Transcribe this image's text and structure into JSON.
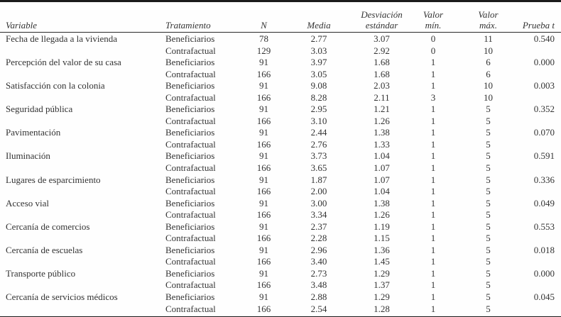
{
  "table": {
    "header": {
      "columns": [
        {
          "id": "variable",
          "line1": "",
          "line2": "Variable"
        },
        {
          "id": "tratamiento",
          "line1": "",
          "line2": "Tratamiento"
        },
        {
          "id": "n",
          "line1": "",
          "line2": "N"
        },
        {
          "id": "media",
          "line1": "",
          "line2": "Media"
        },
        {
          "id": "sd",
          "line1": "Desviación",
          "line2": "estándar"
        },
        {
          "id": "min",
          "line1": "Valor",
          "line2": "mín."
        },
        {
          "id": "max",
          "line1": "Valor",
          "line2": "máx."
        },
        {
          "id": "t",
          "line1": "",
          "line2": "Prueba t"
        }
      ]
    },
    "rows": [
      {
        "variable": "Fecha de llegada a la vivienda",
        "tratamiento": "Beneficiarios",
        "n": "78",
        "media": "2.77",
        "sd": "3.07",
        "min": "0",
        "max": "11",
        "t": "0.540"
      },
      {
        "variable": "",
        "tratamiento": "Contrafactual",
        "n": "129",
        "media": "3.03",
        "sd": "2.92",
        "min": "0",
        "max": "10",
        "t": ""
      },
      {
        "variable": "Percepción del valor de su casa",
        "tratamiento": "Beneficiarios",
        "n": "91",
        "media": "3.97",
        "sd": "1.68",
        "min": "1",
        "max": "6",
        "t": "0.000"
      },
      {
        "variable": "",
        "tratamiento": "Contrafactual",
        "n": "166",
        "media": "3.05",
        "sd": "1.68",
        "min": "1",
        "max": "6",
        "t": ""
      },
      {
        "variable": "Satisfacción con la colonia",
        "tratamiento": "Beneficiarios",
        "n": "91",
        "media": "9.08",
        "sd": "2.03",
        "min": "1",
        "max": "10",
        "t": "0.003"
      },
      {
        "variable": "",
        "tratamiento": "Contrafactual",
        "n": "166",
        "media": "8.28",
        "sd": "2.11",
        "min": "3",
        "max": "10",
        "t": ""
      },
      {
        "variable": "Seguridad pública",
        "tratamiento": "Beneficiarios",
        "n": "91",
        "media": "2.95",
        "sd": "1.21",
        "min": "1",
        "max": "5",
        "t": "0.352"
      },
      {
        "variable": "",
        "tratamiento": "Contrafactual",
        "n": "166",
        "media": "3.10",
        "sd": "1.26",
        "min": "1",
        "max": "5",
        "t": ""
      },
      {
        "variable": "Pavimentación",
        "tratamiento": "Beneficiarios",
        "n": "91",
        "media": "2.44",
        "sd": "1.38",
        "min": "1",
        "max": "5",
        "t": "0.070"
      },
      {
        "variable": "",
        "tratamiento": "Contrafactual",
        "n": "166",
        "media": "2.76",
        "sd": "1.33",
        "min": "1",
        "max": "5",
        "t": ""
      },
      {
        "variable": "Iluminación",
        "tratamiento": "Beneficiarios",
        "n": "91",
        "media": "3.73",
        "sd": "1.04",
        "min": "1",
        "max": "5",
        "t": "0.591"
      },
      {
        "variable": "",
        "tratamiento": "Contrafactual",
        "n": "166",
        "media": "3.65",
        "sd": "1.07",
        "min": "1",
        "max": "5",
        "t": ""
      },
      {
        "variable": "Lugares de esparcimiento",
        "tratamiento": "Beneficiarios",
        "n": "91",
        "media": "1.87",
        "sd": "1.07",
        "min": "1",
        "max": "5",
        "t": "0.336"
      },
      {
        "variable": "",
        "tratamiento": "Contrafactual",
        "n": "166",
        "media": "2.00",
        "sd": "1.04",
        "min": "1",
        "max": "5",
        "t": ""
      },
      {
        "variable": "Acceso vial",
        "tratamiento": "Beneficiarios",
        "n": "91",
        "media": "3.00",
        "sd": "1.38",
        "min": "1",
        "max": "5",
        "t": "0.049"
      },
      {
        "variable": "",
        "tratamiento": "Contrafactual",
        "n": "166",
        "media": "3.34",
        "sd": "1.26",
        "min": "1",
        "max": "5",
        "t": ""
      },
      {
        "variable": "Cercanía de comercios",
        "tratamiento": "Beneficiarios",
        "n": "91",
        "media": "2.37",
        "sd": "1.19",
        "min": "1",
        "max": "5",
        "t": "0.553"
      },
      {
        "variable": "",
        "tratamiento": "Contrafactual",
        "n": "166",
        "media": "2.28",
        "sd": "1.15",
        "min": "1",
        "max": "5",
        "t": ""
      },
      {
        "variable": "Cercanía de escuelas",
        "tratamiento": "Beneficiarios",
        "n": "91",
        "media": "2.96",
        "sd": "1.36",
        "min": "1",
        "max": "5",
        "t": "0.018"
      },
      {
        "variable": "",
        "tratamiento": "Contrafactual",
        "n": "166",
        "media": "3.40",
        "sd": "1.45",
        "min": "1",
        "max": "5",
        "t": ""
      },
      {
        "variable": "Transporte público",
        "tratamiento": "Beneficiarios",
        "n": "91",
        "media": "2.73",
        "sd": "1.29",
        "min": "1",
        "max": "5",
        "t": "0.000"
      },
      {
        "variable": "",
        "tratamiento": "Contrafactual",
        "n": "166",
        "media": "3.48",
        "sd": "1.37",
        "min": "1",
        "max": "5",
        "t": ""
      },
      {
        "variable": "Cercanía de servicios médicos",
        "tratamiento": "Beneficiarios",
        "n": "91",
        "media": "2.88",
        "sd": "1.29",
        "min": "1",
        "max": "5",
        "t": "0.045"
      },
      {
        "variable": "",
        "tratamiento": "Contrafactual",
        "n": "166",
        "media": "2.54",
        "sd": "1.28",
        "min": "1",
        "max": "5",
        "t": ""
      }
    ]
  }
}
